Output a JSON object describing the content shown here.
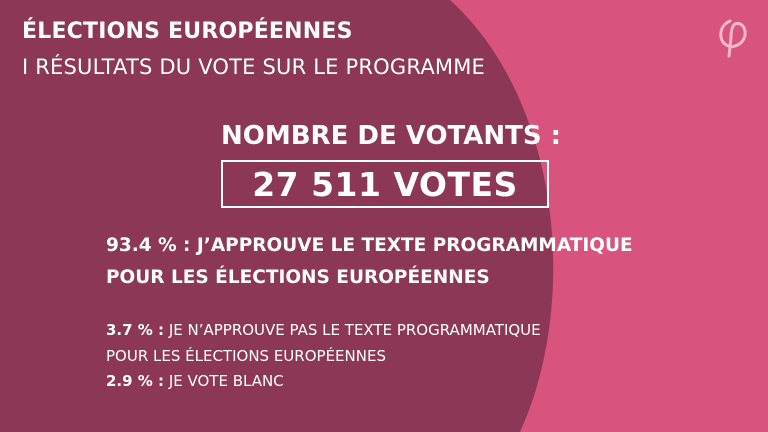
{
  "header": {
    "title": "ÉLECTIONS EUROPÉENNES",
    "subtitle": "I RÉSULTATS DU VOTE SUR LE PROGRAMME"
  },
  "votants": {
    "label": "NOMBRE DE VOTANTS :",
    "value": "27 511 VOTES"
  },
  "results": [
    {
      "percent": "93.4 % :",
      "line1": " J’APPROUVE LE TEXTE PROGRAMMATIQUE",
      "line2": "POUR LES ÉLECTIONS EUROPÉENNES"
    },
    {
      "percent": "3.7 % :",
      "line1": " JE N’APPROUVE PAS LE TEXTE PROGRAMMATIQUE",
      "line2": "POUR LES ÉLECTIONS EUROPÉENNES"
    },
    {
      "percent": "2.9 % :",
      "line1": " JE VOTE BLANC"
    }
  ],
  "logo": {
    "icon": "phi-logo-icon"
  },
  "colors": {
    "background_light": "#d9537f",
    "background_dark": "#8d3756",
    "text": "#ffffff"
  }
}
